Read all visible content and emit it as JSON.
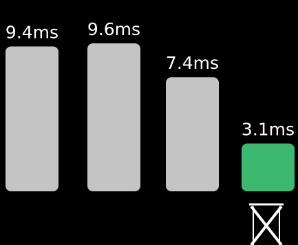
{
  "chart_data": {
    "type": "bar",
    "categories": [
      "",
      "",
      "",
      ""
    ],
    "values": [
      9.4,
      9.6,
      7.4,
      3.1
    ],
    "labels": [
      "9.4ms",
      "9.6ms",
      "7.4ms",
      "3.1ms"
    ],
    "unit": "ms",
    "ylim": [
      0,
      10
    ],
    "colors": [
      "#c4c4c4",
      "#c4c4c4",
      "#c4c4c4",
      "#3cb870"
    ],
    "grid": false,
    "legend": "none"
  },
  "marker": {
    "icon": "hourglass-icon",
    "color": "#ffffff"
  }
}
